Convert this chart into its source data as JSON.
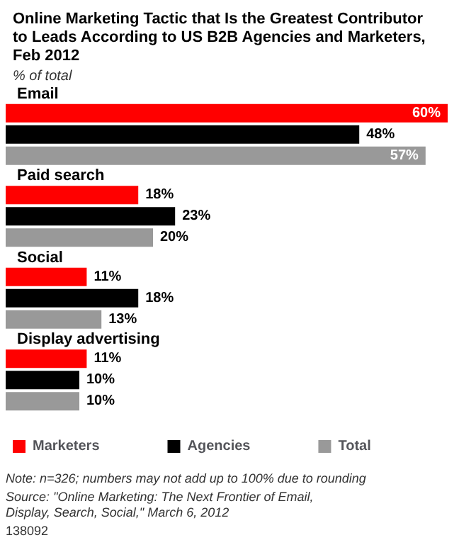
{
  "chart_data": {
    "type": "bar",
    "orientation": "horizontal",
    "title": "Online Marketing Tactic that Is the Greatest Contributor to Leads According to US B2B Agencies and Marketers, Feb 2012",
    "subtitle": "% of total",
    "categories": [
      "Email",
      "Paid search",
      "Social",
      "Display advertising"
    ],
    "series": [
      {
        "name": "Marketers",
        "color": "#ff0000",
        "values": [
          60,
          18,
          11,
          11
        ],
        "value_labels": [
          "60%",
          "18%",
          "11%",
          "11%"
        ]
      },
      {
        "name": "Agencies",
        "color": "#000000",
        "values": [
          48,
          23,
          18,
          10
        ],
        "value_labels": [
          "48%",
          "23%",
          "18%",
          "10%"
        ]
      },
      {
        "name": "Total",
        "color": "#999999",
        "values": [
          57,
          20,
          13,
          10
        ],
        "value_labels": [
          "57%",
          "20%",
          "13%",
          "10%"
        ]
      }
    ],
    "relative": false,
    "grid": false,
    "legend": "bottom",
    "annotations": [
      "Note: n=326; numbers may not add up to 100% due to rounding",
      "Source: \"Online Marketing: The Next Frontier of Email, Display, Search, Social,\" March 6, 2012",
      "138092"
    ]
  }
}
